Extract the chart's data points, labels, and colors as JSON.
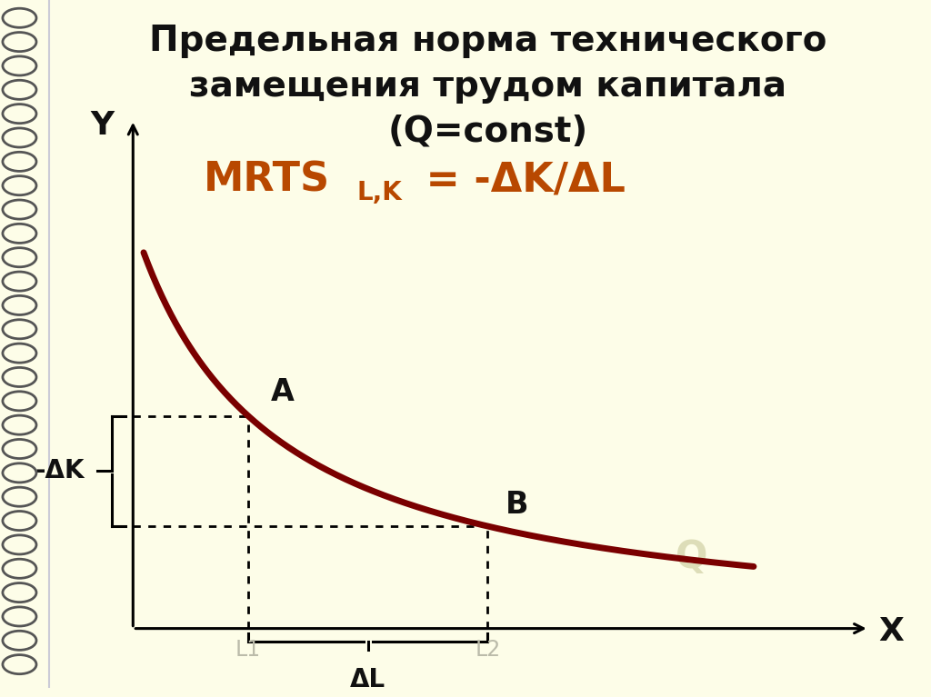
{
  "bg_color": "#fdfde8",
  "title_line1": "Предельная норма технического",
  "title_line2": "замещения трудом капитала",
  "title_line3": "(Q=const)",
  "formula_main": "MRTS",
  "formula_sub": "L,K",
  "formula_rest": " = -ΔK/ΔL",
  "title_fontsize": 28,
  "formula_fontsize": 32,
  "formula_sub_fontsize": 20,
  "curve_color": "#7a0000",
  "curve_linewidth": 5.0,
  "axis_color": "#000000",
  "label_y": "Y",
  "label_x": "X",
  "label_A": "A",
  "label_B": "B",
  "label_Q": "Q",
  "label_L1": "L1",
  "label_L2": "L2",
  "label_dk": "-ΔK",
  "label_dl": "ΔL",
  "dot_line_color": "#000000",
  "formula_color": "#b84800",
  "spiral_color": "#555555",
  "axis_origin_x": 1.5,
  "axis_origin_y": 1.0,
  "axis_top_y": 9.5,
  "axis_right_x": 9.8,
  "xA": 2.8,
  "xB": 5.5,
  "curve_a": 10.5,
  "curve_c": 0.8,
  "xlim": [
    0,
    10.5
  ],
  "ylim": [
    0,
    11.5
  ]
}
